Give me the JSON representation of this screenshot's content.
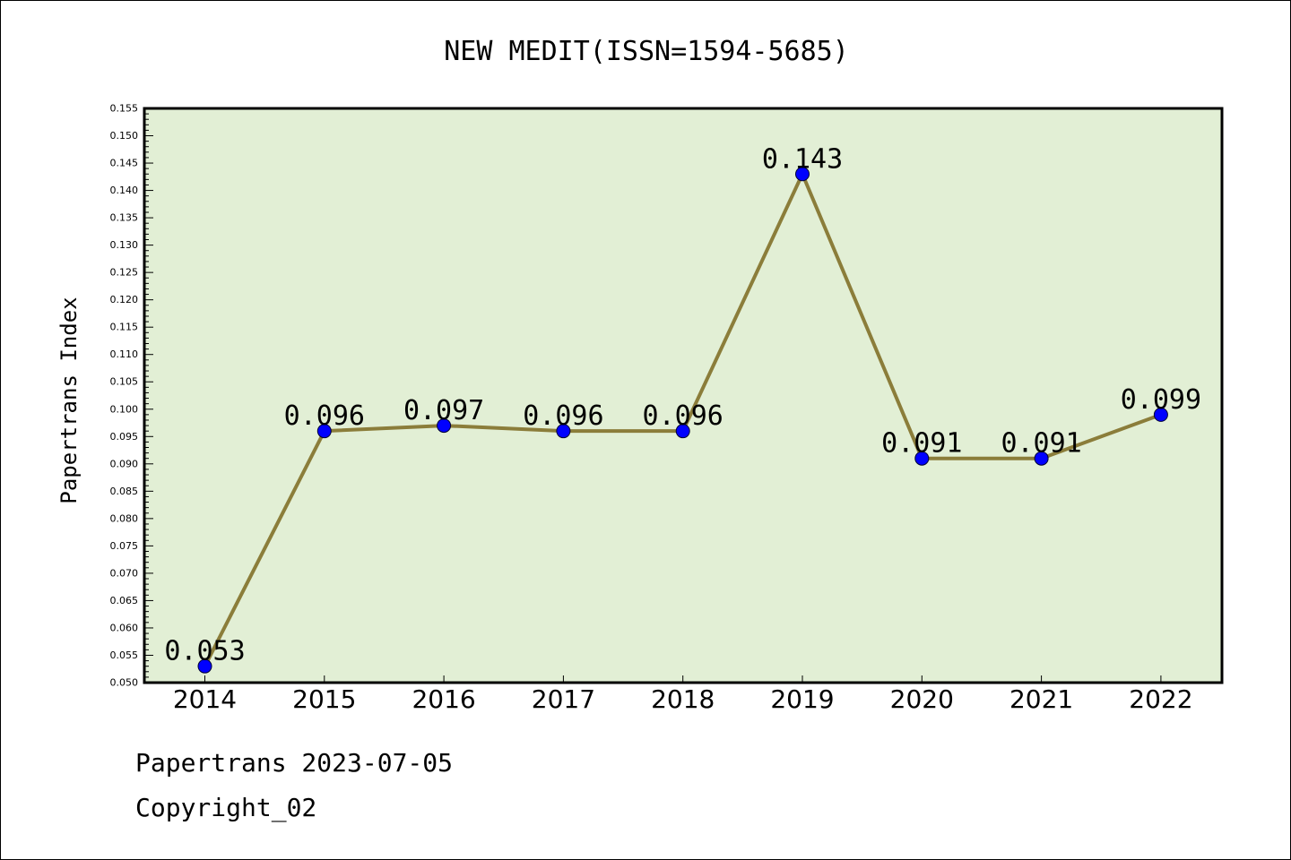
{
  "chart_data": {
    "type": "line",
    "title": "NEW MEDIT(ISSN=1594-5685)",
    "xlabel": "",
    "ylabel": "Papertrans Index",
    "categories": [
      "2014",
      "2015",
      "2016",
      "2017",
      "2018",
      "2019",
      "2020",
      "2021",
      "2022"
    ],
    "series": [
      {
        "values": [
          0.053,
          0.096,
          0.097,
          0.096,
          0.096,
          0.143,
          0.091,
          0.091,
          0.099
        ],
        "labels": [
          "0.053",
          "0.096",
          "0.097",
          "0.096",
          "0.096",
          "0.143",
          "0.091",
          "0.091",
          "0.099"
        ]
      }
    ],
    "ylim": [
      0.05,
      0.155
    ],
    "ytick_step": 0.005,
    "ytick_labels": [
      "0.050",
      "0.055",
      "0.060",
      "0.065",
      "0.070",
      "0.075",
      "0.080",
      "0.085",
      "0.090",
      "0.095",
      "0.100",
      "0.105",
      "0.110",
      "0.115",
      "0.120",
      "0.125",
      "0.130",
      "0.135",
      "0.140",
      "0.145",
      "0.150",
      "0.155"
    ],
    "grid": false,
    "legend": "none",
    "colors": {
      "plot_background": "#e2efd5",
      "line": "#8b7d3a",
      "marker": "#0000ff",
      "axis": "#000000"
    }
  },
  "footer": {
    "source_line": "Papertrans 2023-07-05",
    "copyright_line": "Copyright_02"
  }
}
